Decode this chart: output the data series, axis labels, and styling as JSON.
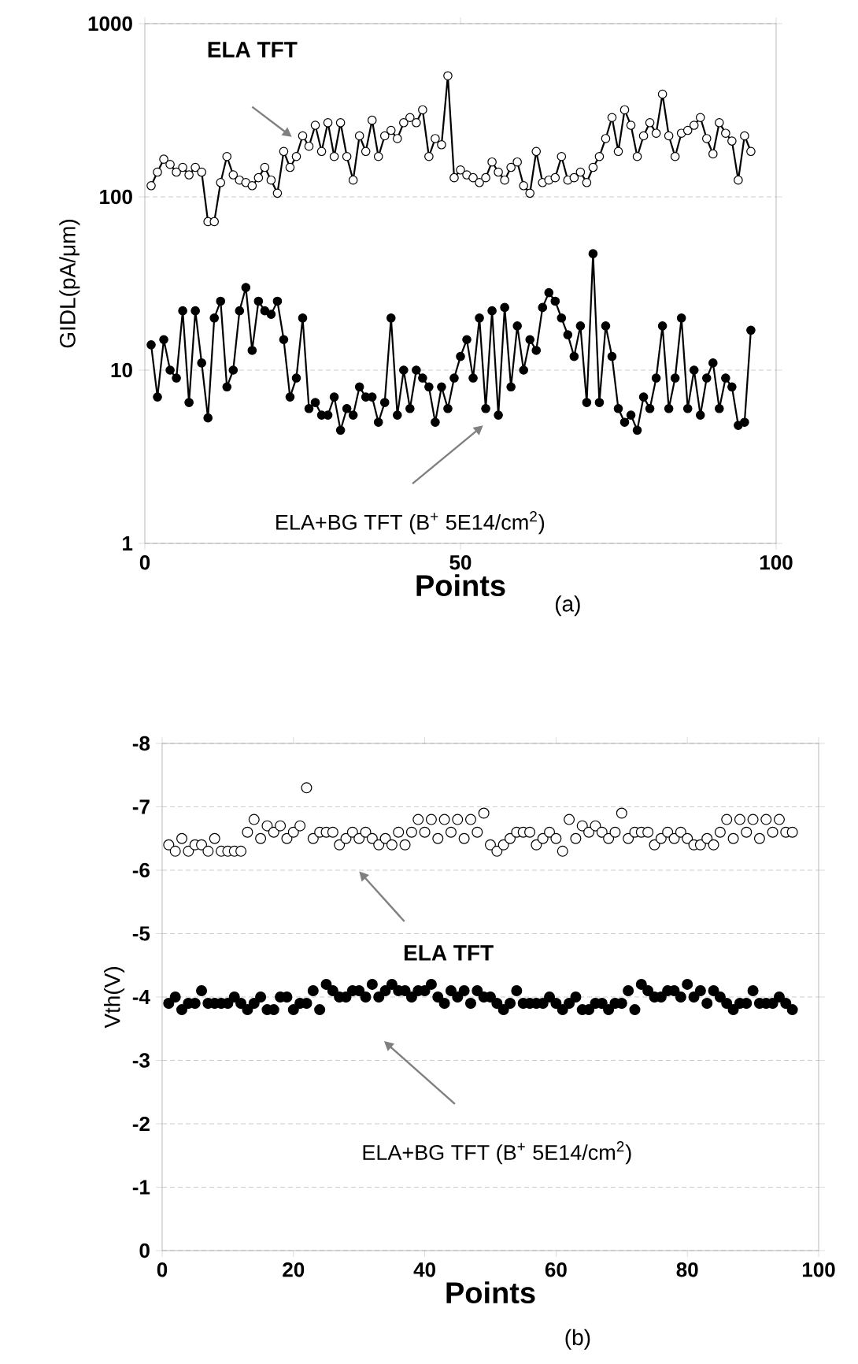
{
  "chart_data": [
    {
      "type": "line",
      "xlabel": "Points",
      "ylabel": "GIDL(pA/μm)",
      "log": "y",
      "grid": "y",
      "marker": "circle",
      "line_style": "solid",
      "xlim": [
        0,
        100
      ],
      "xticks": [
        0,
        50,
        100
      ],
      "ylim": [
        1,
        1000
      ],
      "yticks": [
        1,
        10,
        100,
        1000
      ],
      "annotations": [
        "ELA TFT",
        "ELA+BG TFT (B$^{+}$ 5E14/cm$^{2}$)",
        "(a)"
      ],
      "x": [
        1,
        2,
        3,
        4,
        5,
        6,
        7,
        8,
        9,
        10,
        11,
        12,
        13,
        14,
        15,
        16,
        17,
        18,
        19,
        20,
        21,
        22,
        23,
        24,
        25,
        26,
        27,
        28,
        29,
        30,
        31,
        32,
        33,
        34,
        35,
        36,
        37,
        38,
        39,
        40,
        41,
        42,
        43,
        44,
        45,
        46,
        47,
        48,
        49,
        50,
        51,
        52,
        53,
        54,
        55,
        56,
        57,
        58,
        59,
        60,
        61,
        62,
        63,
        64,
        65,
        66,
        67,
        68,
        69,
        70,
        71,
        72,
        73,
        74,
        75,
        76,
        77,
        78,
        79,
        80,
        81,
        82,
        83,
        84,
        85,
        86,
        87,
        88,
        89,
        90,
        91,
        92,
        93,
        94,
        95,
        96
      ],
      "series": [
        {
          "color": "#000000",
          "values": [
            116,
            139,
            165,
            154,
            139,
            148,
            134,
            148,
            139,
            72,
            72,
            121,
            171,
            134,
            125,
            121,
            116,
            129,
            148,
            125,
            105,
            183,
            148,
            171,
            225,
            196,
            259,
            183,
            268,
            171,
            268,
            171,
            125,
            225,
            183,
            277,
            171,
            225,
            242,
            217,
            268,
            287,
            268,
            318,
            171,
            217,
            200,
            500,
            129,
            143,
            134,
            129,
            121,
            129,
            159,
            139,
            125,
            148,
            159,
            116,
            105,
            183,
            121,
            125,
            129,
            171,
            125,
            129,
            139,
            121,
            148,
            171,
            217,
            287,
            183,
            318,
            259,
            171,
            225,
            268,
            233,
            392,
            225,
            171,
            233,
            242,
            259,
            287,
            217,
            177,
            268,
            233,
            210,
            125,
            225,
            183
          ]
        },
        {
          "color": "#000000",
          "values": [
            14,
            7,
            15,
            10,
            9,
            22,
            6.5,
            22,
            11,
            5.3,
            20,
            25,
            8,
            10,
            22,
            30,
            13,
            25,
            22,
            21,
            25,
            15,
            7,
            9,
            20,
            6,
            6.5,
            5.5,
            5.5,
            7,
            4.5,
            6,
            5.5,
            8,
            7,
            7,
            5,
            6.5,
            20,
            5.5,
            10,
            6,
            10,
            9,
            8,
            5,
            8,
            6,
            9,
            12,
            15,
            9,
            20,
            6,
            22,
            5.5,
            23,
            8,
            18,
            10,
            15,
            13,
            23,
            28,
            25,
            20,
            16,
            12,
            18,
            6.5,
            47,
            6.5,
            18,
            12,
            6,
            5,
            5.5,
            4.5,
            7,
            6,
            9,
            18,
            6,
            9,
            20,
            6,
            10,
            5.5,
            9,
            11,
            6,
            9,
            8,
            4.8,
            5,
            17
          ]
        }
      ]
    },
    {
      "type": "scatter",
      "xlabel": "Points",
      "ylabel": "Vth(V)",
      "grid": "y",
      "marker": "circle",
      "xlim": [
        0,
        100
      ],
      "xticks": [
        0,
        20,
        40,
        60,
        80,
        100
      ],
      "ylim": [
        0,
        -8
      ],
      "yticks": [
        -8,
        -7,
        -6,
        -5,
        -4,
        -3,
        -2,
        -1,
        0
      ],
      "annotations": [
        "ELA TFT",
        "ELA+BG TFT (B$^{+}$ 5E14/cm$^{2}$)",
        "(b)"
      ],
      "x": [
        1,
        2,
        3,
        4,
        5,
        6,
        7,
        8,
        9,
        10,
        11,
        12,
        13,
        14,
        15,
        16,
        17,
        18,
        19,
        20,
        21,
        22,
        23,
        24,
        25,
        26,
        27,
        28,
        29,
        30,
        31,
        32,
        33,
        34,
        35,
        36,
        37,
        38,
        39,
        40,
        41,
        42,
        43,
        44,
        45,
        46,
        47,
        48,
        49,
        50,
        51,
        52,
        53,
        54,
        55,
        56,
        57,
        58,
        59,
        60,
        61,
        62,
        63,
        64,
        65,
        66,
        67,
        68,
        69,
        70,
        71,
        72,
        73,
        74,
        75,
        76,
        77,
        78,
        79,
        80,
        81,
        82,
        83,
        84,
        85,
        86,
        87,
        88,
        89,
        90,
        91,
        92,
        93,
        94,
        95,
        96
      ],
      "series": [
        {
          "color": "#000000",
          "values": [
            -6.4,
            -6.3,
            -6.5,
            -6.3,
            -6.4,
            -6.4,
            -6.3,
            -6.5,
            -6.3,
            -6.3,
            -6.3,
            -6.3,
            -6.6,
            -6.8,
            -6.5,
            -6.7,
            -6.6,
            -6.7,
            -6.5,
            -6.6,
            -6.7,
            -7.3,
            -6.5,
            -6.6,
            -6.6,
            -6.6,
            -6.4,
            -6.5,
            -6.6,
            -6.5,
            -6.6,
            -6.5,
            -6.4,
            -6.5,
            -6.4,
            -6.6,
            -6.4,
            -6.6,
            -6.8,
            -6.6,
            -6.8,
            -6.5,
            -6.8,
            -6.6,
            -6.8,
            -6.5,
            -6.8,
            -6.6,
            -6.9,
            -6.4,
            -6.3,
            -6.4,
            -6.5,
            -6.6,
            -6.6,
            -6.6,
            -6.4,
            -6.5,
            -6.6,
            -6.5,
            -6.3,
            -6.8,
            -6.5,
            -6.7,
            -6.6,
            -6.7,
            -6.6,
            -6.5,
            -6.6,
            -6.9,
            -6.5,
            -6.6,
            -6.6,
            -6.6,
            -6.4,
            -6.5,
            -6.6,
            -6.5,
            -6.6,
            -6.5,
            -6.4,
            -6.4,
            -6.5,
            -6.4,
            -6.6,
            -6.8,
            -6.5,
            -6.8,
            -6.6,
            -6.8,
            -6.5,
            -6.8,
            -6.6,
            -6.8,
            -6.6,
            -6.6
          ]
        },
        {
          "color": "#000000",
          "values": [
            -3.9,
            -4.0,
            -3.8,
            -3.9,
            -3.9,
            -4.1,
            -3.9,
            -3.9,
            -3.9,
            -3.9,
            -4.0,
            -3.9,
            -3.8,
            -3.9,
            -4.0,
            -3.8,
            -3.8,
            -4.0,
            -4.0,
            -3.8,
            -3.9,
            -3.9,
            -4.1,
            -3.8,
            -4.2,
            -4.1,
            -4.0,
            -4.0,
            -4.1,
            -4.1,
            -4.0,
            -4.2,
            -4.0,
            -4.1,
            -4.2,
            -4.1,
            -4.1,
            -4.0,
            -4.1,
            -4.1,
            -4.2,
            -4.0,
            -3.9,
            -4.1,
            -4.0,
            -4.1,
            -3.9,
            -4.1,
            -4.0,
            -4.0,
            -3.9,
            -3.8,
            -3.9,
            -4.1,
            -3.9,
            -3.9,
            -3.9,
            -3.9,
            -4.0,
            -3.9,
            -3.8,
            -3.9,
            -4.0,
            -3.8,
            -3.8,
            -3.9,
            -3.9,
            -3.8,
            -3.9,
            -3.9,
            -4.1,
            -3.8,
            -4.2,
            -4.1,
            -4.0,
            -4.0,
            -4.1,
            -4.1,
            -4.0,
            -4.2,
            -4.0,
            -4.1,
            -3.9,
            -4.1,
            -4.0,
            -3.9,
            -3.8,
            -3.9,
            -3.9,
            -4.1,
            -3.9,
            -3.9,
            -3.9,
            -4.0,
            -3.9,
            -3.8
          ]
        }
      ]
    }
  ]
}
